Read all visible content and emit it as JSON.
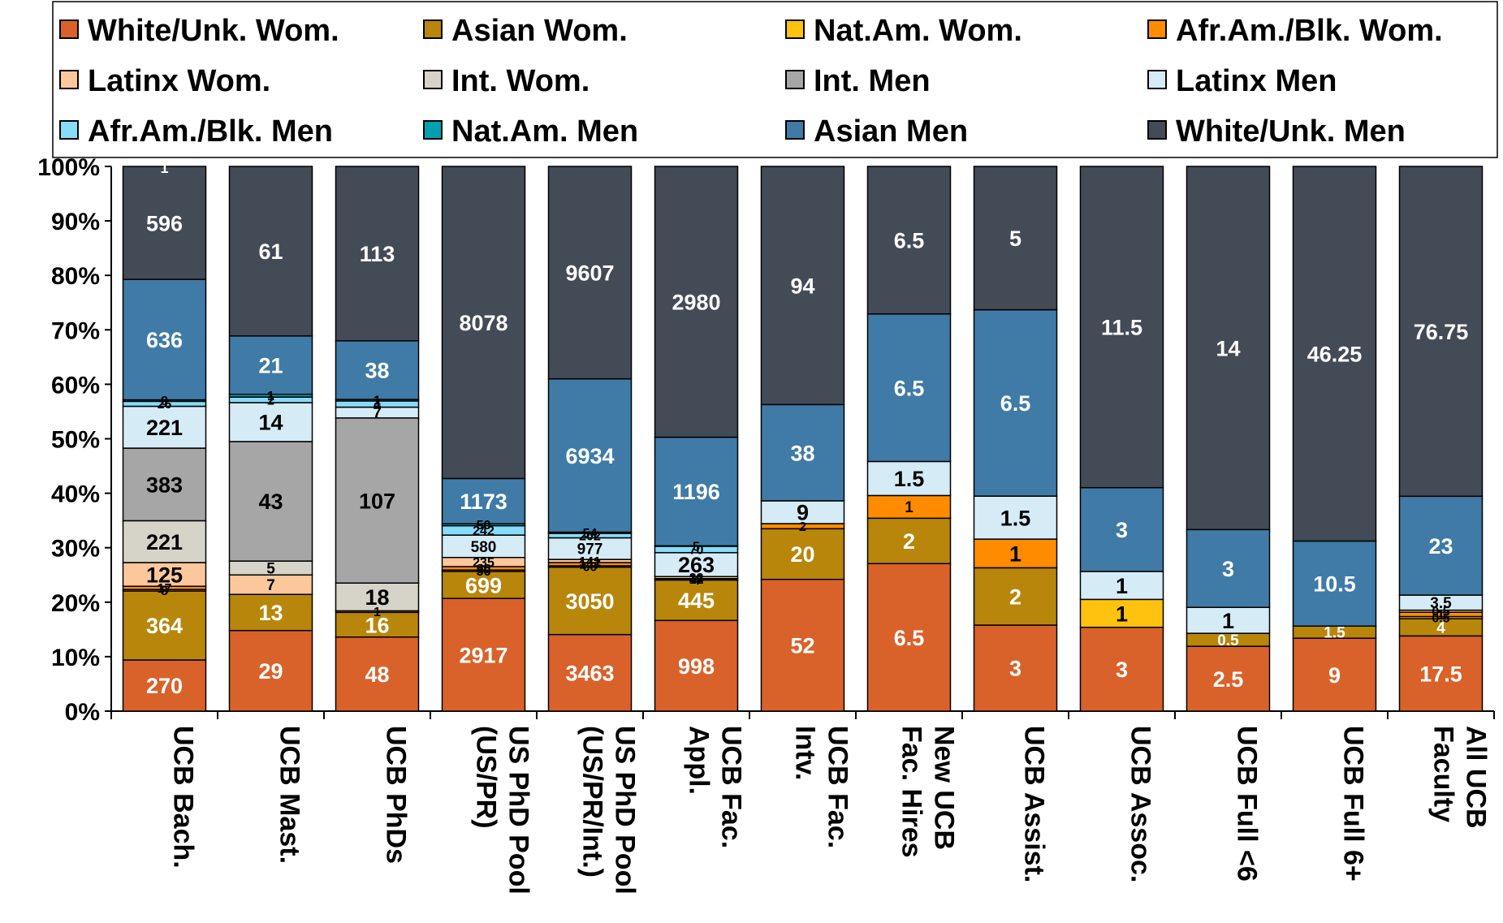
{
  "chart_data": {
    "type": "bar",
    "stacked": true,
    "normalized": true,
    "ylim": [
      0,
      100
    ],
    "yticks": [
      "0%",
      "10%",
      "20%",
      "30%",
      "40%",
      "50%",
      "60%",
      "70%",
      "80%",
      "90%",
      "100%"
    ],
    "legend_position": "top",
    "categories": [
      [
        "UCB Bach."
      ],
      [
        "UCB Mast."
      ],
      [
        "UCB PhDs"
      ],
      [
        "US PhD Pool",
        "(US/PR)"
      ],
      [
        "US PhD Pool",
        "(US/PR/Int.)"
      ],
      [
        "UCB Fac.",
        "Appl."
      ],
      [
        "UCB Fac.",
        "Intv."
      ],
      [
        "New UCB",
        "Fac. Hires"
      ],
      [
        "UCB Assist."
      ],
      [
        "UCB Assoc."
      ],
      [
        "UCB Full <6"
      ],
      [
        "UCB Full 6+"
      ],
      [
        "All UCB",
        "Faculty"
      ]
    ],
    "series": [
      {
        "name": "White/Unk. Wom.",
        "color": "#d9622b",
        "label_color": "#ffffff",
        "values": [
          270,
          29,
          48,
          2917,
          3463,
          998,
          52,
          6.5,
          3,
          3,
          2.5,
          9,
          17.5
        ]
      },
      {
        "name": "Asian Wom.",
        "color": "#b8860b",
        "label_color": "#ffffff",
        "values": [
          364,
          13,
          16,
          699,
          3050,
          445,
          20,
          2,
          2,
          0,
          0.5,
          1.5,
          4
        ]
      },
      {
        "name": "Nat.Am. Wom.",
        "color": "#ffc20e",
        "label_color": "#000000",
        "values": [
          8,
          0,
          0,
          36,
          60,
          4,
          0,
          0,
          0,
          1,
          0,
          0,
          0.5
        ]
      },
      {
        "name": "Afr.Am./Blk. Wom.",
        "color": "#ff8c00",
        "label_color": "#000000",
        "values": [
          17,
          0,
          1,
          90,
          147,
          12,
          2,
          1,
          1,
          0,
          0,
          0,
          1
        ]
      },
      {
        "name": "Latinx Wom.",
        "color": "#fcc89b",
        "label_color": "#000000",
        "values": [
          125,
          7,
          0,
          235,
          141,
          22,
          0,
          0,
          0,
          0,
          0,
          0,
          0.5
        ]
      },
      {
        "name": "Int. Wom.",
        "color": "#d6d3c8",
        "label_color": "#000000",
        "values": [
          221,
          5,
          18,
          0,
          0,
          0,
          0,
          0,
          0,
          0,
          0,
          0,
          0
        ]
      },
      {
        "name": "Int. Men",
        "color": "#a6a6a6",
        "label_color": "#000000",
        "values": [
          383,
          43,
          107,
          0,
          0,
          0,
          0,
          0,
          0,
          0,
          0,
          0,
          0
        ]
      },
      {
        "name": "Latinx Men",
        "color": "#d5ecf7",
        "label_color": "#000000",
        "values": [
          221,
          14,
          7,
          580,
          977,
          263,
          9,
          1.5,
          1.5,
          1,
          1,
          0,
          3.5
        ]
      },
      {
        "name": "Afr.Am./Blk. Men",
        "color": "#87dcfa",
        "label_color": "#000000",
        "values": [
          26,
          2,
          4,
          242,
          202,
          70,
          0,
          0,
          0,
          0,
          0,
          0,
          0
        ]
      },
      {
        "name": "Nat.Am. Men",
        "color": "#00a0b0",
        "label_color": "#000000",
        "values": [
          8,
          1,
          1,
          50,
          54,
          5,
          0,
          0,
          0,
          0,
          0,
          0,
          0
        ]
      },
      {
        "name": "Asian Men",
        "color": "#3f7ba6",
        "label_color": "#ffffff",
        "values": [
          636,
          21,
          38,
          1173,
          6934,
          1196,
          38,
          6.5,
          6.5,
          3,
          3,
          10.5,
          23
        ]
      },
      {
        "name": "White/Unk. Men",
        "color": "#434b56",
        "label_color": "#ffffff",
        "values": [
          596,
          61,
          113,
          8078,
          9607,
          2980,
          94,
          6.5,
          5,
          11.5,
          14,
          46.25,
          76.75
        ]
      }
    ],
    "extra_labels": [
      {
        "text": "1",
        "category": 0,
        "color": "#ffffff"
      }
    ]
  }
}
